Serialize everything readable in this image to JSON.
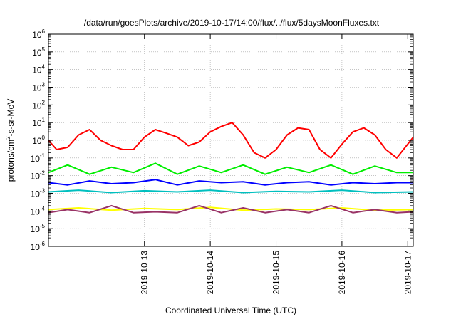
{
  "chart_data": {
    "type": "line",
    "title": "/data/run/goesPlots/archive/2019-10-17/14:00/flux/../flux/5daysMoonFluxes.txt",
    "xlabel": "Coordinated Universal Time (UTC)",
    "ylabel_parts": [
      "protons/cm",
      "2",
      "-s-sr-MeV"
    ],
    "x_range": [
      "2019-10-12T01:00",
      "2019-10-17T14:00"
    ],
    "y_scale": "log",
    "ylim": [
      1e-06,
      1000000.0
    ],
    "y_ticks": [
      {
        "base": "10",
        "exp": "-6"
      },
      {
        "base": "10",
        "exp": "-5"
      },
      {
        "base": "10",
        "exp": "-4"
      },
      {
        "base": "10",
        "exp": "-3"
      },
      {
        "base": "10",
        "exp": "-2"
      },
      {
        "base": "10",
        "exp": "-1"
      },
      {
        "base": "10",
        "exp": "0"
      },
      {
        "base": "10",
        "exp": "1"
      },
      {
        "base": "10",
        "exp": "2"
      },
      {
        "base": "10",
        "exp": "3"
      },
      {
        "base": "10",
        "exp": "4"
      },
      {
        "base": "10",
        "exp": "5"
      },
      {
        "base": "10",
        "exp": "6"
      }
    ],
    "x_ticks": [
      "2019-10-13",
      "2019-10-14",
      "2019-10-15",
      "2019-10-16",
      "2019-10-17"
    ],
    "grid": true,
    "legend": "none",
    "series": [
      {
        "color": "#ff0000",
        "x": [
          "2019-10-12T01:00",
          "2019-10-12T04:00",
          "2019-10-12T08:00",
          "2019-10-12T12:00",
          "2019-10-12T16:00",
          "2019-10-12T20:00",
          "2019-10-13T00:00",
          "2019-10-13T04:00",
          "2019-10-13T08:00",
          "2019-10-13T12:00",
          "2019-10-13T16:00",
          "2019-10-13T20:00",
          "2019-10-14T00:00",
          "2019-10-14T04:00",
          "2019-10-14T08:00",
          "2019-10-14T12:00",
          "2019-10-14T16:00",
          "2019-10-14T20:00",
          "2019-10-15T00:00",
          "2019-10-15T04:00",
          "2019-10-15T08:00",
          "2019-10-15T12:00",
          "2019-10-15T16:00",
          "2019-10-15T20:00",
          "2019-10-16T00:00",
          "2019-10-16T04:00",
          "2019-10-16T08:00",
          "2019-10-16T12:00",
          "2019-10-16T16:00",
          "2019-10-16T20:00",
          "2019-10-17T00:00",
          "2019-10-17T04:00",
          "2019-10-17T08:00",
          "2019-10-17T14:00"
        ],
        "y": [
          1.0,
          0.3,
          0.4,
          2.0,
          4.0,
          1.0,
          0.5,
          0.3,
          0.3,
          1.5,
          4.0,
          2.5,
          1.5,
          0.5,
          0.8,
          3.0,
          6.0,
          10.0,
          2.0,
          0.2,
          0.1,
          0.3,
          2.0,
          5.0,
          4.0,
          0.3,
          0.1,
          0.6,
          3.0,
          5.0,
          2.0,
          0.3,
          0.1,
          1.5
        ]
      },
      {
        "color": "#00ee00",
        "x": [
          "2019-10-12T01:00",
          "2019-10-12T08:00",
          "2019-10-12T16:00",
          "2019-10-13T00:00",
          "2019-10-13T08:00",
          "2019-10-13T16:00",
          "2019-10-14T00:00",
          "2019-10-14T08:00",
          "2019-10-14T16:00",
          "2019-10-15T00:00",
          "2019-10-15T08:00",
          "2019-10-15T16:00",
          "2019-10-16T00:00",
          "2019-10-16T08:00",
          "2019-10-16T16:00",
          "2019-10-17T00:00",
          "2019-10-17T08:00",
          "2019-10-17T14:00"
        ],
        "y": [
          0.015,
          0.04,
          0.012,
          0.03,
          0.015,
          0.05,
          0.012,
          0.035,
          0.015,
          0.04,
          0.012,
          0.03,
          0.015,
          0.04,
          0.012,
          0.035,
          0.015,
          0.015
        ]
      },
      {
        "color": "#00bfbf",
        "x": [
          "2019-10-12T01:00",
          "2019-10-12T12:00",
          "2019-10-13T00:00",
          "2019-10-13T12:00",
          "2019-10-14T00:00",
          "2019-10-14T12:00",
          "2019-10-15T00:00",
          "2019-10-15T12:00",
          "2019-10-16T00:00",
          "2019-10-16T12:00",
          "2019-10-17T00:00",
          "2019-10-17T14:00"
        ],
        "y": [
          0.0012,
          0.0015,
          0.0011,
          0.0014,
          0.0012,
          0.0015,
          0.0011,
          0.0013,
          0.0012,
          0.0015,
          0.0011,
          0.0012
        ]
      },
      {
        "color": "#0000ff",
        "x": [
          "2019-10-12T01:00",
          "2019-10-12T08:00",
          "2019-10-12T16:00",
          "2019-10-13T00:00",
          "2019-10-13T08:00",
          "2019-10-13T16:00",
          "2019-10-14T00:00",
          "2019-10-14T08:00",
          "2019-10-14T16:00",
          "2019-10-15T00:00",
          "2019-10-15T08:00",
          "2019-10-15T16:00",
          "2019-10-16T00:00",
          "2019-10-16T08:00",
          "2019-10-16T16:00",
          "2019-10-17T00:00",
          "2019-10-17T08:00",
          "2019-10-17T14:00"
        ],
        "y": [
          0.004,
          0.003,
          0.005,
          0.0035,
          0.004,
          0.006,
          0.003,
          0.005,
          0.004,
          0.0045,
          0.003,
          0.004,
          0.0045,
          0.003,
          0.004,
          0.0035,
          0.004,
          0.004
        ]
      },
      {
        "color": "#ffff00",
        "x": [
          "2019-10-12T01:00",
          "2019-10-12T12:00",
          "2019-10-13T00:00",
          "2019-10-13T12:00",
          "2019-10-14T00:00",
          "2019-10-14T12:00",
          "2019-10-15T00:00",
          "2019-10-15T12:00",
          "2019-10-16T00:00",
          "2019-10-16T12:00",
          "2019-10-17T00:00",
          "2019-10-17T14:00"
        ],
        "y": [
          0.00012,
          0.00015,
          0.00011,
          0.00014,
          0.00012,
          0.00016,
          0.00011,
          0.00013,
          0.00012,
          0.00015,
          0.00011,
          0.00012
        ]
      },
      {
        "color": "#993366",
        "x": [
          "2019-10-12T01:00",
          "2019-10-12T08:00",
          "2019-10-12T16:00",
          "2019-10-13T00:00",
          "2019-10-13T08:00",
          "2019-10-13T16:00",
          "2019-10-14T00:00",
          "2019-10-14T08:00",
          "2019-10-14T16:00",
          "2019-10-15T00:00",
          "2019-10-15T08:00",
          "2019-10-15T16:00",
          "2019-10-16T00:00",
          "2019-10-16T08:00",
          "2019-10-16T16:00",
          "2019-10-17T00:00",
          "2019-10-17T08:00",
          "2019-10-17T14:00"
        ],
        "y": [
          8e-05,
          0.00012,
          8e-05,
          0.0002,
          8e-05,
          9e-05,
          8e-05,
          0.0002,
          8e-05,
          0.00015,
          8e-05,
          0.00012,
          8e-05,
          0.0002,
          8e-05,
          0.00012,
          8e-05,
          9e-05
        ]
      }
    ]
  }
}
